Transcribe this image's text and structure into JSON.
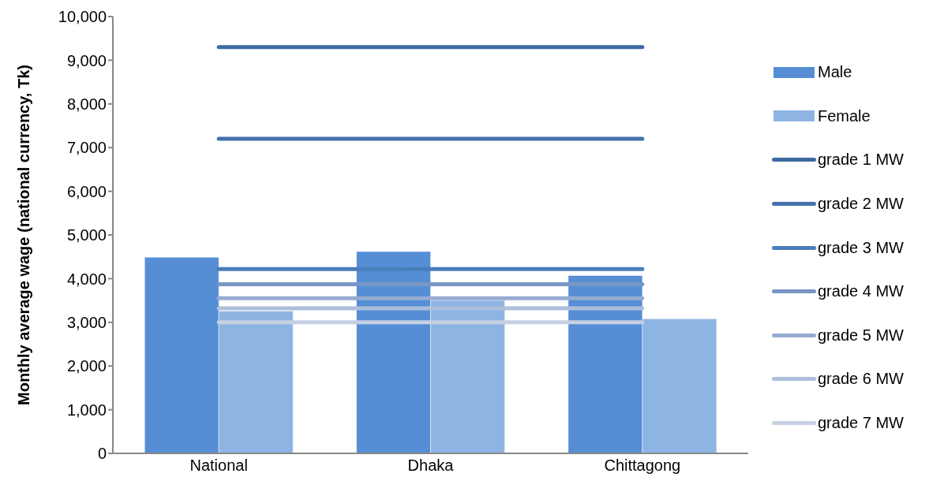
{
  "chart_data": {
    "type": "bar",
    "ylabel": "Monthly average wage (national currency, Tk)",
    "categories": [
      "National",
      "Dhaka",
      "Chittagong"
    ],
    "series": [
      {
        "name": "Male",
        "color": "#558ed5",
        "values": [
          4490,
          4620,
          4070
        ]
      },
      {
        "name": "Female",
        "color": "#8eb4e3",
        "values": [
          3260,
          3500,
          3080
        ]
      },
      {
        "name": "grade 1 MW",
        "type": "line",
        "color": "#3d6aa3",
        "values": [
          9300,
          9300,
          9300
        ]
      },
      {
        "name": "grade 2 MW",
        "type": "line",
        "color": "#4472ad",
        "values": [
          7200,
          7200,
          7200
        ]
      },
      {
        "name": "grade 3 MW",
        "type": "line",
        "color": "#4a7ebb",
        "values": [
          4220,
          4220,
          4220
        ]
      },
      {
        "name": "grade 4 MW",
        "type": "line",
        "color": "#7896c6",
        "values": [
          3870,
          3870,
          3870
        ]
      },
      {
        "name": "grade 5 MW",
        "type": "line",
        "color": "#95abd1",
        "values": [
          3550,
          3550,
          3550
        ]
      },
      {
        "name": "grade 6 MW",
        "type": "line",
        "color": "#adbfdc",
        "values": [
          3320,
          3320,
          3320
        ]
      },
      {
        "name": "grade 7 MW",
        "type": "line",
        "color": "#c5d0e3",
        "values": [
          3000,
          3000,
          3000
        ]
      }
    ],
    "ylim": [
      0,
      10000
    ],
    "yticks": [
      0,
      {
        "value": 1000,
        "label": "1,000"
      },
      {
        "value": 2000,
        "label": "2,000"
      },
      {
        "value": 3000,
        "label": "3,000"
      },
      {
        "value": 4000,
        "label": "4,000"
      },
      {
        "value": 5000,
        "label": "5,000"
      },
      {
        "value": 6000,
        "label": "6,000"
      },
      {
        "value": 7000,
        "label": "7,000"
      },
      {
        "value": 8000,
        "label": "8,000"
      },
      {
        "value": 9000,
        "label": "9,000"
      },
      {
        "value": 10000,
        "label": "10,000"
      }
    ],
    "grid": false,
    "legend": "right",
    "line_style": "solid",
    "marker": "none"
  }
}
